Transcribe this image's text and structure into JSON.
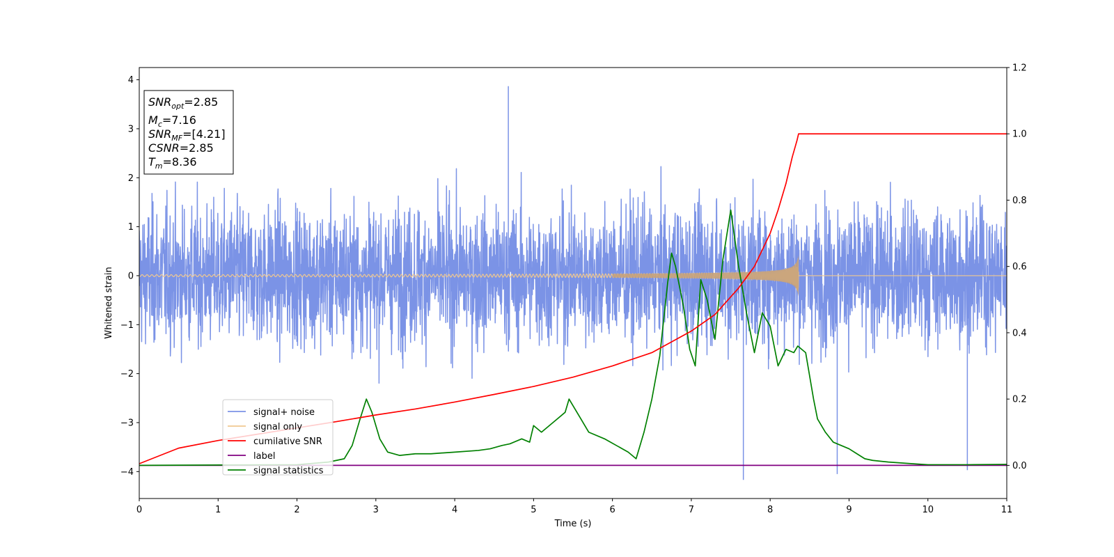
{
  "chart_data": {
    "type": "line",
    "xlabel": "Time (s)",
    "ylabel": "Whitened strain",
    "xlim": [
      0,
      11
    ],
    "ylim": [
      -4.55,
      4.25
    ],
    "y2lim": [
      -0.1,
      1.2
    ],
    "x_ticks": [
      0,
      1,
      2,
      3,
      4,
      5,
      6,
      7,
      8,
      9,
      10,
      11
    ],
    "y_ticks": [
      -4,
      -3,
      -2,
      -1,
      0,
      1,
      2,
      3,
      4
    ],
    "y2_ticks": [
      0.0,
      0.2,
      0.4,
      0.6,
      0.8,
      1.0,
      1.2
    ],
    "x_tick_labels": [
      "0",
      "1",
      "2",
      "3",
      "4",
      "5",
      "6",
      "7",
      "8",
      "9",
      "10",
      "11"
    ],
    "y_tick_labels": [
      "−4",
      "−3",
      "−2",
      "−1",
      "0",
      "1",
      "2",
      "3",
      "4"
    ],
    "y2_tick_labels": [
      "0.0",
      "0.2",
      "0.4",
      "0.6",
      "0.8",
      "1.0",
      "1.2"
    ],
    "legend_position": "lower-left",
    "grid": false,
    "info_box": [
      {
        "main": "SNR",
        "sub": "opt",
        "rest": "=2.85"
      },
      {
        "main": "M",
        "sub": "c",
        "rest": "=7.16"
      },
      {
        "main": "SNR",
        "sub": "MF",
        "rest": "=[4.21]"
      },
      {
        "main": "CSNR",
        "sub": "",
        "rest": "=2.85"
      },
      {
        "main": "T",
        "sub": "m",
        "rest": "=8.36"
      }
    ],
    "series": [
      {
        "name": "signal+ noise",
        "color": "#7b93e6",
        "axis": "left",
        "description": "whitened noise, roughly ±1.8 with peaks reaching about ±3.9 across 0–11 s",
        "envelope_extremes": [
          [
            4.68,
            3.87
          ],
          [
            7.66,
            -4.17
          ],
          [
            8.85,
            -4.05
          ],
          [
            10.5,
            -3.97
          ]
        ]
      },
      {
        "name": "signal only",
        "color": "#f0c890",
        "axis": "left",
        "chirp": {
          "t_start": 0,
          "t_merge": 8.36,
          "max_amplitude": 0.42
        }
      },
      {
        "name": "cumilative SNR",
        "color": "#ff0000",
        "axis": "right",
        "x": [
          0,
          0.5,
          1,
          1.5,
          2,
          2.5,
          3,
          3.5,
          4,
          4.5,
          5,
          5.5,
          6,
          6.5,
          7,
          7.3,
          7.6,
          7.8,
          8.0,
          8.1,
          8.2,
          8.28,
          8.34,
          8.36,
          11
        ],
        "y": [
          0.005,
          0.052,
          0.075,
          0.094,
          0.113,
          0.132,
          0.152,
          0.17,
          0.191,
          0.214,
          0.238,
          0.266,
          0.3,
          0.34,
          0.405,
          0.455,
          0.535,
          0.6,
          0.7,
          0.77,
          0.85,
          0.93,
          0.98,
          1.0,
          1.0
        ]
      },
      {
        "name": "label",
        "color": "#800080",
        "axis": "right",
        "x": [
          0,
          11
        ],
        "y": [
          0,
          0
        ]
      },
      {
        "name": "signal statistics",
        "color": "#008000",
        "axis": "right",
        "x": [
          0,
          2.0,
          2.4,
          2.6,
          2.7,
          2.8,
          2.88,
          2.95,
          3.05,
          3.15,
          3.3,
          3.5,
          3.7,
          4.0,
          4.3,
          4.45,
          4.6,
          4.7,
          4.85,
          4.95,
          5.0,
          5.1,
          5.2,
          5.3,
          5.4,
          5.45,
          5.5,
          5.6,
          5.7,
          5.9,
          6.05,
          6.2,
          6.3,
          6.4,
          6.5,
          6.6,
          6.7,
          6.75,
          6.8,
          6.9,
          6.98,
          7.05,
          7.12,
          7.2,
          7.3,
          7.4,
          7.5,
          7.6,
          7.7,
          7.8,
          7.9,
          8.0,
          8.1,
          8.2,
          8.3,
          8.35,
          8.45,
          8.55,
          8.6,
          8.7,
          8.8,
          8.9,
          9.0,
          9.1,
          9.2,
          9.3,
          9.5,
          9.8,
          10.0,
          10.5,
          11.0
        ],
        "y": [
          0.0,
          0.002,
          0.01,
          0.02,
          0.06,
          0.14,
          0.2,
          0.16,
          0.08,
          0.04,
          0.03,
          0.035,
          0.035,
          0.04,
          0.045,
          0.05,
          0.06,
          0.065,
          0.08,
          0.07,
          0.12,
          0.1,
          0.12,
          0.14,
          0.16,
          0.2,
          0.18,
          0.14,
          0.1,
          0.08,
          0.06,
          0.04,
          0.02,
          0.1,
          0.2,
          0.33,
          0.55,
          0.64,
          0.6,
          0.48,
          0.35,
          0.3,
          0.56,
          0.5,
          0.38,
          0.62,
          0.77,
          0.6,
          0.46,
          0.34,
          0.46,
          0.42,
          0.3,
          0.35,
          0.34,
          0.36,
          0.34,
          0.2,
          0.14,
          0.1,
          0.07,
          0.06,
          0.05,
          0.035,
          0.02,
          0.015,
          0.01,
          0.005,
          0.002,
          0.002,
          0.003
        ]
      }
    ]
  }
}
